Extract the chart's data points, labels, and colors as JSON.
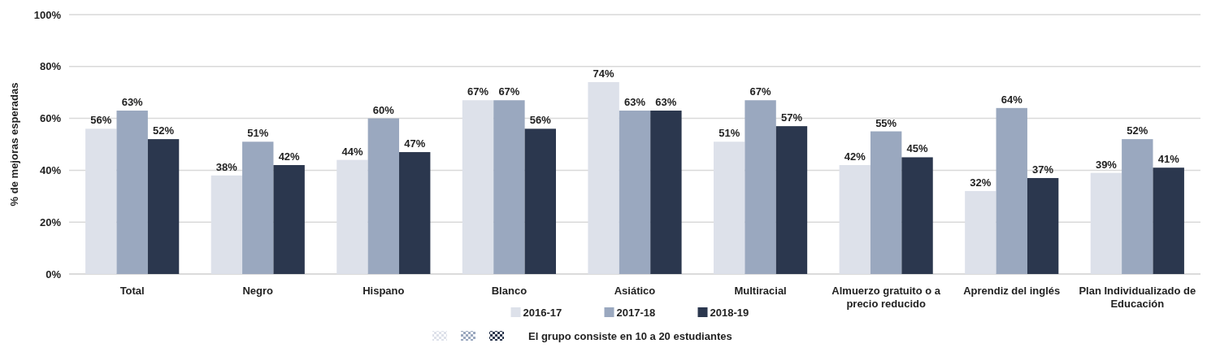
{
  "chart_data": {
    "type": "bar",
    "ylabel": "% de mejoras esperadas",
    "categories": [
      "Total",
      "Negro",
      "Hispano",
      "Blanco",
      "Asiático",
      "Multiracial",
      "Almuerzo gratuito o a precio reducido",
      "Aprendiz del inglés",
      "Plan Individualizado de Educación"
    ],
    "series": [
      {
        "name": "2016-17",
        "color": "#dde1ea",
        "values": [
          56,
          38,
          44,
          67,
          74,
          51,
          42,
          32,
          39
        ],
        "value_labels": [
          "56%",
          "38%",
          "44%",
          "67%",
          "74%",
          "51%",
          "42%",
          "32%",
          "39%"
        ]
      },
      {
        "name": "2017-18",
        "color": "#9aa8bf",
        "values": [
          63,
          51,
          60,
          67,
          63,
          67,
          55,
          64,
          52
        ],
        "value_labels": [
          "63%",
          "51%",
          "60%",
          "67%",
          "63%",
          "67%",
          "55%",
          "64%",
          "52%"
        ]
      },
      {
        "name": "2018-19",
        "color": "#2b374e",
        "values": [
          52,
          42,
          47,
          56,
          63,
          57,
          45,
          37,
          41
        ],
        "value_labels": [
          "52%",
          "42%",
          "47%",
          "56%",
          "63%",
          "57%",
          "45%",
          "37%",
          "41%"
        ]
      }
    ],
    "ylim": [
      0,
      100
    ],
    "yticks": [
      {
        "value": 0,
        "label": "0%"
      },
      {
        "value": 20,
        "label": "20%"
      },
      {
        "value": 40,
        "label": "40%"
      },
      {
        "value": 60,
        "label": "60%"
      },
      {
        "value": 80,
        "label": "80%"
      },
      {
        "value": 100,
        "label": "100%"
      }
    ],
    "grid": "y",
    "legend": "bottom",
    "annotations": [
      "El grupo consiste en 10 a 20 estudiantes"
    ]
  }
}
